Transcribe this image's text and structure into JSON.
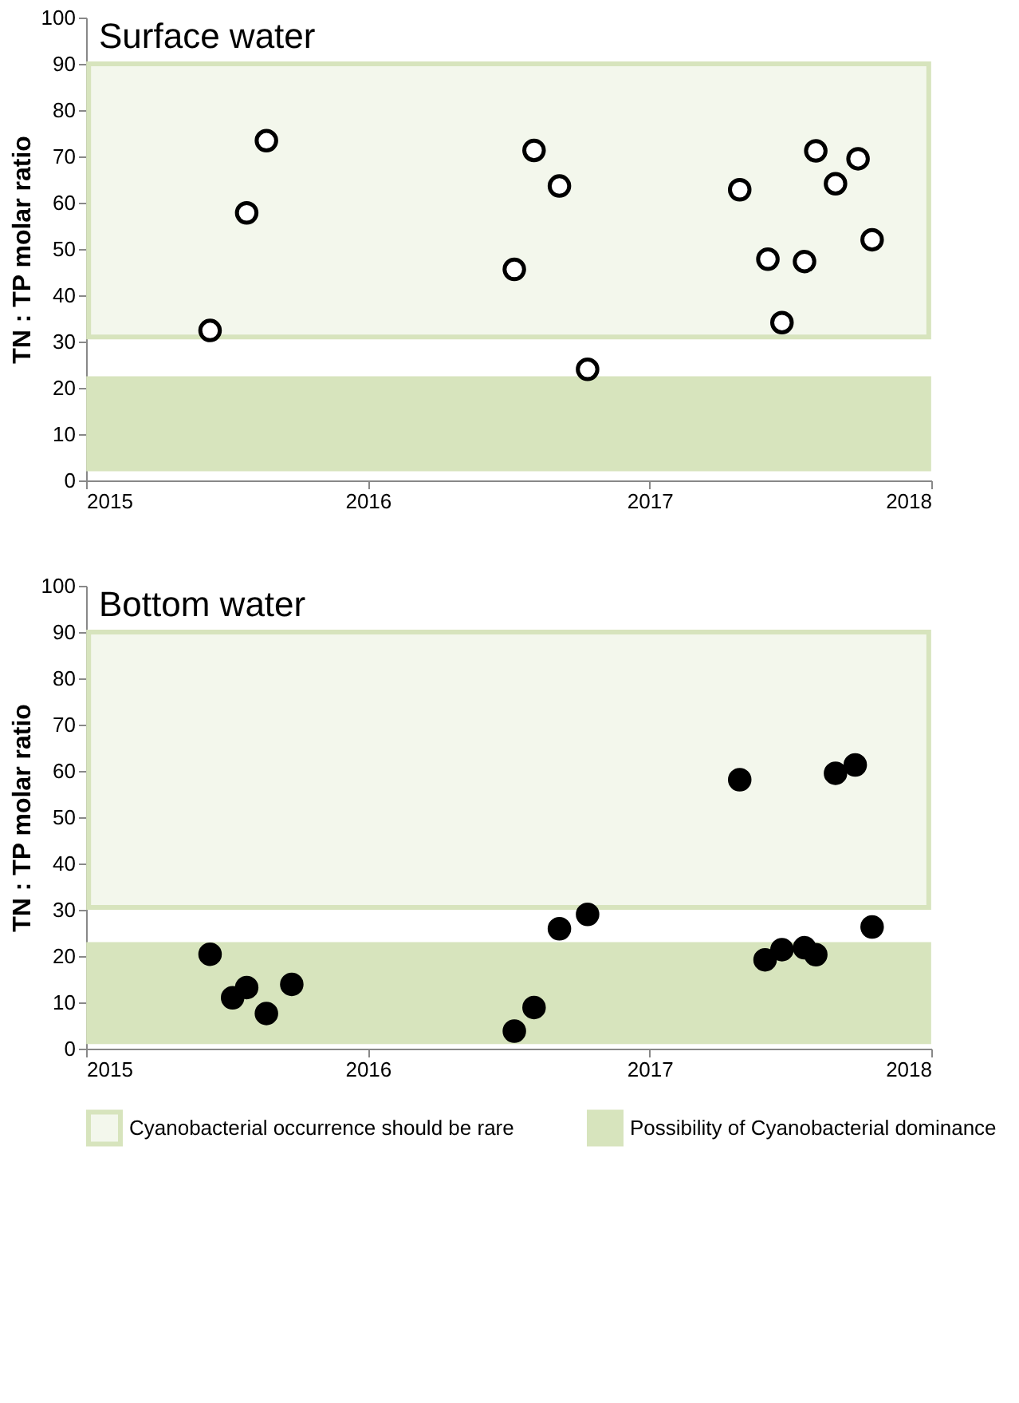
{
  "chart_data": [
    {
      "type": "scatter",
      "title": "Surface water",
      "ylabel": "TN : TP molar ratio",
      "xlim": [
        2015,
        2018
      ],
      "xticks": [
        2015,
        2016,
        2017,
        2018
      ],
      "ylim": [
        0,
        100
      ],
      "yticks": [
        0,
        10,
        20,
        30,
        40,
        50,
        60,
        70,
        80,
        90,
        100
      ],
      "grid": false,
      "marker": "circle",
      "legend": false,
      "x": [
        2015.44,
        2015.57,
        2015.64,
        2016.52,
        2016.59,
        2016.68,
        2016.78,
        2017.32,
        2017.42,
        2017.47,
        2017.55,
        2017.59,
        2017.66,
        2017.74,
        2017.79
      ],
      "series": [
        {
          "color": "#ffffff",
          "values": [
            32.4,
            57.8,
            73.4,
            45.6,
            71.3,
            63.6,
            24.0,
            62.8,
            47.8,
            34.1,
            47.3,
            71.2,
            64.1,
            69.5,
            52.0
          ]
        }
      ],
      "bands": [
        {
          "axis": "y",
          "from": 31,
          "to": 90,
          "color": "#f3f7ec"
        },
        {
          "axis": "y",
          "from": 2.5,
          "to": 22,
          "color": "#d7e4bd"
        }
      ]
    },
    {
      "type": "scatter",
      "title": "Bottom water",
      "ylabel": "TN : TP molar ratio",
      "xlim": [
        2015,
        2018
      ],
      "xticks": [
        2015,
        2016,
        2017,
        2018
      ],
      "ylim": [
        0,
        100
      ],
      "yticks": [
        0,
        10,
        20,
        30,
        40,
        50,
        60,
        70,
        80,
        90,
        100
      ],
      "grid": false,
      "marker": "circle",
      "legend": "bottom",
      "x": [
        2015.44,
        2015.52,
        2015.57,
        2015.64,
        2015.73,
        2016.52,
        2016.59,
        2016.68,
        2016.78,
        2017.32,
        2017.41,
        2017.47,
        2017.55,
        2017.59,
        2017.66,
        2017.73,
        2017.79
      ],
      "series": [
        {
          "color": "#000000",
          "values": [
            20.4,
            11.0,
            13.2,
            7.6,
            13.9,
            3.8,
            8.9,
            25.9,
            29.0,
            58.1,
            19.2,
            21.4,
            21.8,
            20.3,
            59.5,
            61.3,
            26.3
          ]
        }
      ],
      "bands": [
        {
          "axis": "y",
          "from": 30.5,
          "to": 90,
          "label": "Cyanobacterial occurrence should be rare",
          "color": "#f3f7ec"
        },
        {
          "axis": "y",
          "from": 1.5,
          "to": 22.5,
          "label": "Possibility of Cyanobacterial dominance",
          "color": "#d7e4bd"
        }
      ]
    }
  ]
}
